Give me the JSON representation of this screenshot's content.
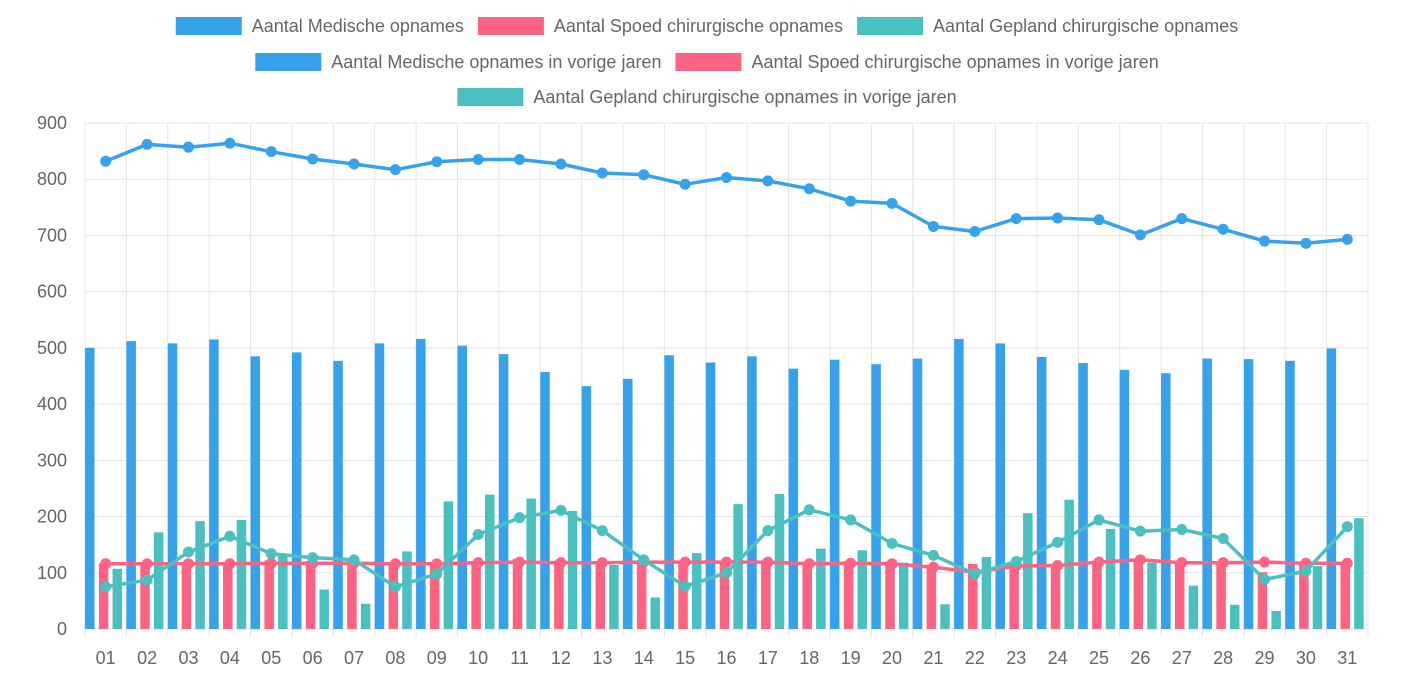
{
  "chart_data": {
    "type": "bar",
    "categories": [
      "01",
      "02",
      "03",
      "04",
      "05",
      "06",
      "07",
      "08",
      "09",
      "10",
      "11",
      "12",
      "13",
      "14",
      "15",
      "16",
      "17",
      "18",
      "19",
      "20",
      "21",
      "22",
      "23",
      "24",
      "25",
      "26",
      "27",
      "28",
      "29",
      "30",
      "31"
    ],
    "ylim": [
      0,
      900
    ],
    "yticks": [
      0,
      100,
      200,
      300,
      400,
      500,
      600,
      700,
      800,
      900
    ],
    "grid": true,
    "legend_position": "top-center",
    "series": [
      {
        "name": "Aantal Medische opnames",
        "render": "bar",
        "color": "#36A2EB",
        "values": [
          500,
          512,
          508,
          515,
          485,
          492,
          477,
          508,
          516,
          504,
          489,
          457,
          432,
          445,
          487,
          474,
          485,
          463,
          479,
          471,
          481,
          516,
          508,
          484,
          473,
          461,
          455,
          481,
          480,
          477,
          499
        ]
      },
      {
        "name": "Aantal Spoed chirurgische opnames",
        "render": "bar",
        "color": "#FF6384",
        "values": [
          117,
          119,
          118,
          118,
          122,
          121,
          121,
          119,
          115,
          121,
          125,
          122,
          117,
          123,
          121,
          121,
          122,
          116,
          121,
          120,
          112,
          116,
          119,
          113,
          122,
          125,
          119,
          119,
          101,
          119,
          119
        ]
      },
      {
        "name": "Aantal Gepland chirurgische opnames",
        "render": "bar",
        "color": "#4BC0C0",
        "values": [
          107,
          172,
          192,
          194,
          132,
          70,
          45,
          138,
          227,
          239,
          232,
          210,
          114,
          56,
          135,
          222,
          240,
          143,
          140,
          118,
          44,
          128,
          206,
          230,
          178,
          118,
          77,
          43,
          32,
          112,
          197
        ]
      },
      {
        "name": "Aantal Medische opnames in vorige jaren",
        "render": "line",
        "color": "#36A2EB",
        "values": [
          832,
          862,
          857,
          864,
          849,
          836,
          827,
          817,
          831,
          835,
          835,
          827,
          811,
          808,
          791,
          803,
          797,
          783,
          761,
          757,
          716,
          707,
          730,
          731,
          728,
          701,
          730,
          711,
          690,
          686,
          693
        ]
      },
      {
        "name": "Aantal Spoed chirurgische opnames in vorige jaren",
        "render": "line",
        "color": "#FF6384",
        "values": [
          116,
          116,
          116,
          116,
          117,
          117,
          117,
          116,
          116,
          118,
          119,
          118,
          118,
          119,
          119,
          119,
          119,
          116,
          117,
          116,
          110,
          101,
          112,
          113,
          119,
          123,
          118,
          118,
          119,
          117,
          117
        ]
      },
      {
        "name": "Aantal Gepland chirurgische opnames in vorige jaren",
        "render": "line",
        "color": "#4BC0C0",
        "values": [
          75,
          87,
          137,
          165,
          134,
          127,
          123,
          75,
          98,
          168,
          198,
          211,
          175,
          123,
          76,
          100,
          175,
          212,
          194,
          152,
          131,
          98,
          120,
          154,
          194,
          174,
          177,
          161,
          88,
          103,
          182
        ]
      }
    ]
  }
}
